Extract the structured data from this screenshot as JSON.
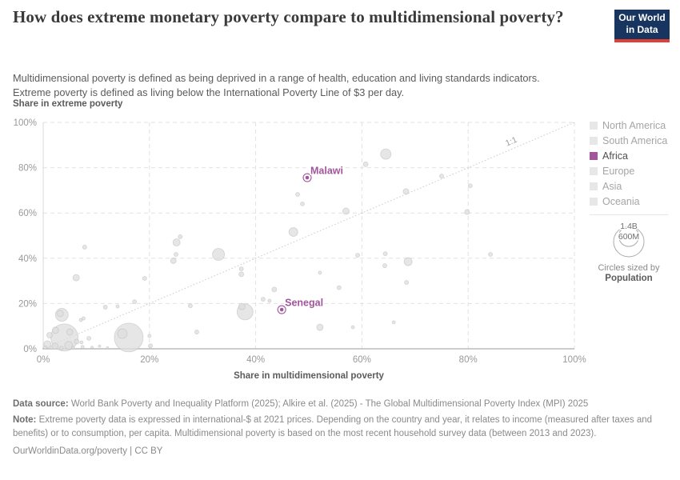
{
  "header": {
    "title": "How does extreme monetary poverty compare to multidimensional poverty?",
    "subtitle_line1": "Multidimensional poverty is defined as being deprived in a range of health, education and living standards indicators.",
    "subtitle_line2": "Extreme poverty is defined as living below the International Poverty Line of $3 per day.",
    "logo": {
      "line1": "Our World",
      "line2": "in Data"
    }
  },
  "colors": {
    "highlight_purple": "#a2559c",
    "bubble_fill": "#dedede",
    "bubble_stroke": "#bdbdbd",
    "grid": "#e2e2e2",
    "axis_line": "#bcbcbc",
    "tick_text": "#999999",
    "diagonal": "#c9c9c9",
    "logo_navy": "#18355f",
    "logo_red": "#e04034"
  },
  "chart_data": {
    "type": "scatter",
    "title": "How does extreme monetary poverty compare to multidimensional poverty?",
    "xlabel": "Share in multidimensional poverty",
    "ylabel": "Share in extreme poverty",
    "xlim": [
      0,
      100
    ],
    "ylim": [
      0,
      100
    ],
    "grid": true,
    "x_ticks": [
      0,
      20,
      40,
      60,
      80,
      100
    ],
    "y_ticks": [
      0,
      20,
      40,
      60,
      80,
      100
    ],
    "tick_suffix": "%",
    "diagonal": {
      "label": "1:1",
      "from": [
        0,
        0
      ],
      "to": [
        100,
        100
      ]
    },
    "highlighted": [
      {
        "name": "Malawi",
        "x": 49.7,
        "y": 75.6
      },
      {
        "name": "Senegal",
        "x": 44.9,
        "y": 17.3
      }
    ],
    "points": [
      {
        "x": 60.7,
        "y": 81.5,
        "r": 3
      },
      {
        "x": 64.5,
        "y": 86.0,
        "r": 6.5
      },
      {
        "x": 75.0,
        "y": 76.3,
        "r": 2.5
      },
      {
        "x": 80.4,
        "y": 72.0,
        "r": 2.5
      },
      {
        "x": 68.3,
        "y": 69.5,
        "r": 3.5
      },
      {
        "x": 57.0,
        "y": 60.8,
        "r": 4
      },
      {
        "x": 79.8,
        "y": 60.4,
        "r": 3
      },
      {
        "x": 47.9,
        "y": 68.2,
        "r": 2.5
      },
      {
        "x": 48.8,
        "y": 64.0,
        "r": 2.5
      },
      {
        "x": 47.1,
        "y": 51.6,
        "r": 5.5
      },
      {
        "x": 7.8,
        "y": 44.9,
        "r": 2.5
      },
      {
        "x": 25.1,
        "y": 47.0,
        "r": 4.5
      },
      {
        "x": 25.8,
        "y": 49.5,
        "r": 2.5
      },
      {
        "x": 25.0,
        "y": 41.7,
        "r": 2.5
      },
      {
        "x": 24.5,
        "y": 38.9,
        "r": 3.5
      },
      {
        "x": 33.0,
        "y": 41.7,
        "r": 7.5
      },
      {
        "x": 6.2,
        "y": 31.4,
        "r": 4
      },
      {
        "x": 19.1,
        "y": 31.1,
        "r": 2.5
      },
      {
        "x": 37.3,
        "y": 35.3,
        "r": 2.5
      },
      {
        "x": 37.3,
        "y": 32.9,
        "r": 3
      },
      {
        "x": 59.2,
        "y": 41.3,
        "r": 2.5
      },
      {
        "x": 64.4,
        "y": 42.0,
        "r": 2.5
      },
      {
        "x": 68.7,
        "y": 38.5,
        "r": 5
      },
      {
        "x": 64.3,
        "y": 36.7,
        "r": 2.5
      },
      {
        "x": 84.2,
        "y": 41.7,
        "r": 2.5
      },
      {
        "x": 52.1,
        "y": 33.6,
        "r": 2
      },
      {
        "x": 55.7,
        "y": 27.0,
        "r": 2.5
      },
      {
        "x": 68.4,
        "y": 29.3,
        "r": 2.5
      },
      {
        "x": 43.5,
        "y": 26.2,
        "r": 3
      },
      {
        "x": 17.2,
        "y": 20.8,
        "r": 2.5
      },
      {
        "x": 11.7,
        "y": 18.4,
        "r": 2.5
      },
      {
        "x": 14.0,
        "y": 18.7,
        "r": 2
      },
      {
        "x": 27.7,
        "y": 19.0,
        "r": 2.5
      },
      {
        "x": 41.4,
        "y": 21.9,
        "r": 2.5
      },
      {
        "x": 42.6,
        "y": 21.2,
        "r": 2
      },
      {
        "x": 38.0,
        "y": 16.3,
        "r": 10
      },
      {
        "x": 37.4,
        "y": 18.7,
        "r": 4
      },
      {
        "x": 3.5,
        "y": 15.0,
        "r": 8
      },
      {
        "x": 3.2,
        "y": 15.6,
        "r": 4
      },
      {
        "x": 7.1,
        "y": 12.7,
        "r": 2
      },
      {
        "x": 7.6,
        "y": 13.4,
        "r": 2
      },
      {
        "x": 4.0,
        "y": 5.0,
        "r": 17
      },
      {
        "x": 16.1,
        "y": 5.0,
        "r": 18
      },
      {
        "x": 14.9,
        "y": 6.7,
        "r": 6
      },
      {
        "x": 5.0,
        "y": 7.4,
        "r": 4
      },
      {
        "x": 2.3,
        "y": 8.2,
        "r": 4
      },
      {
        "x": 1.2,
        "y": 6.0,
        "r": 3.5
      },
      {
        "x": 0.8,
        "y": 2.0,
        "r": 4.5
      },
      {
        "x": 2.2,
        "y": 1.2,
        "r": 4
      },
      {
        "x": 4.8,
        "y": 1.5,
        "r": 5
      },
      {
        "x": 6.3,
        "y": 3.2,
        "r": 3
      },
      {
        "x": 7.2,
        "y": 2.8,
        "r": 2
      },
      {
        "x": 8.6,
        "y": 4.6,
        "r": 2.5
      },
      {
        "x": 7.4,
        "y": 0.8,
        "r": 2
      },
      {
        "x": 0.4,
        "y": 0.6,
        "r": 2
      },
      {
        "x": 1.6,
        "y": 0.4,
        "r": 2
      },
      {
        "x": 3.4,
        "y": 0.3,
        "r": 2.5
      },
      {
        "x": 5.6,
        "y": 0.4,
        "r": 2
      },
      {
        "x": 9.2,
        "y": 0.6,
        "r": 1.5
      },
      {
        "x": 10.6,
        "y": 1.2,
        "r": 1.5
      },
      {
        "x": 12.1,
        "y": 0.4,
        "r": 1.5
      },
      {
        "x": 20.0,
        "y": 5.7,
        "r": 2
      },
      {
        "x": 20.2,
        "y": 1.3,
        "r": 2.5
      },
      {
        "x": 28.9,
        "y": 7.4,
        "r": 2.5
      },
      {
        "x": 52.1,
        "y": 9.5,
        "r": 4
      },
      {
        "x": 58.3,
        "y": 9.5,
        "r": 2
      },
      {
        "x": 66.0,
        "y": 11.7,
        "r": 2
      }
    ]
  },
  "legend": {
    "items": [
      {
        "label": "North America",
        "active": false
      },
      {
        "label": "South America",
        "active": false
      },
      {
        "label": "Africa",
        "active": true
      },
      {
        "label": "Europe",
        "active": false
      },
      {
        "label": "Asia",
        "active": false
      },
      {
        "label": "Oceania",
        "active": false
      }
    ],
    "size_legend": {
      "big_label": "1.4B",
      "small_label": "600M",
      "caption_line1": "Circles sized by",
      "caption_line2": "Population"
    }
  },
  "footer": {
    "datasource_label": "Data source:",
    "datasource_text": " World Bank Poverty and Inequality Platform (2025); Alkire et al. (2025) - The Global Multidimensional Poverty Index (MPI) 2025",
    "note_label": "Note:",
    "note_text": " Extreme poverty data is expressed in international-$ at 2021 prices. Depending on the country and year, it relates to income (measured after taxes and benefits) or to consumption, per capita. Multidimensional poverty is based on the most recent household survey data (between 2013 and 2023).",
    "link": "OurWorldinData.org/poverty | CC BY"
  }
}
